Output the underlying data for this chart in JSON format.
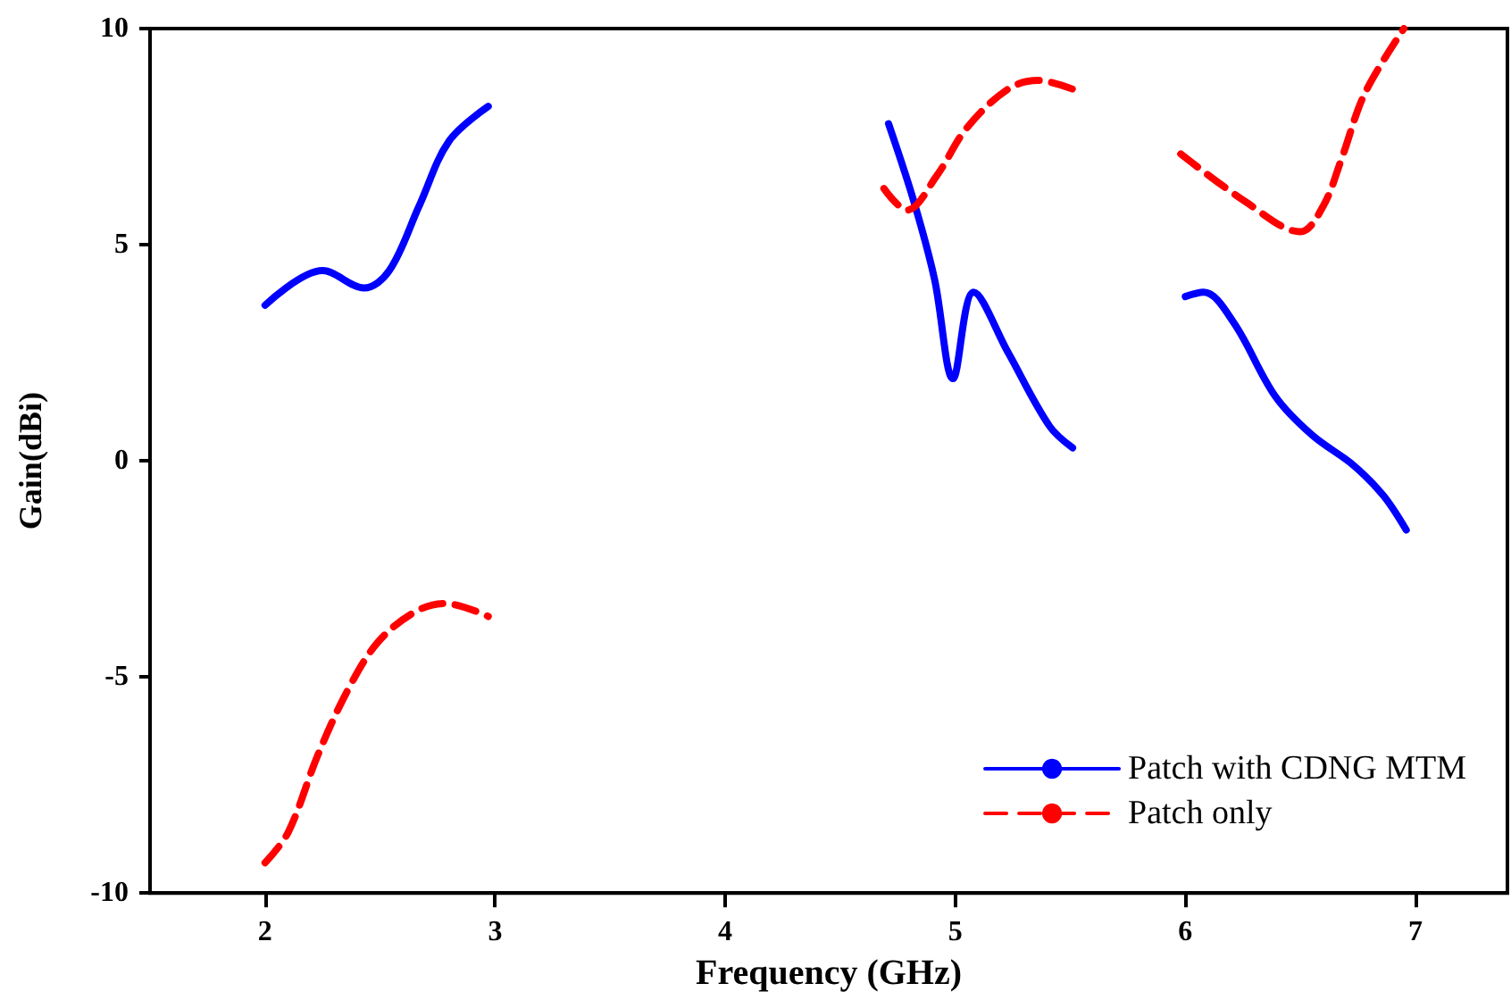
{
  "chart_data": {
    "type": "line",
    "xlabel": "Frequency (GHz)",
    "ylabel": "Gain(dBi)",
    "xlim": [
      1.5,
      7.4
    ],
    "xticks": [
      2,
      3,
      4,
      5,
      6,
      7
    ],
    "ylim": [
      -10,
      10
    ],
    "yticks": [
      -10,
      -5,
      0,
      5,
      10
    ],
    "grid": false,
    "legend": "bottom right",
    "marker": "none",
    "series": [
      {
        "name": "Patch with CDNG MTM",
        "color": "#0000ff",
        "line_style": "solid",
        "x": [
          2.0,
          2.25,
          2.43,
          2.54,
          2.67,
          2.8,
          2.97,
          null,
          4.71,
          4.82,
          4.91,
          4.99,
          5.08,
          5.23,
          5.41,
          5.51,
          null,
          6.0,
          6.08,
          6.21,
          6.39,
          6.55,
          6.73,
          6.86,
          6.96
        ],
        "values": [
          3.6,
          4.4,
          4.0,
          4.4,
          5.9,
          7.4,
          8.2,
          null,
          7.8,
          6.0,
          4.2,
          1.9,
          3.9,
          2.5,
          0.8,
          0.3,
          null,
          3.8,
          3.9,
          3.2,
          1.5,
          0.6,
          -0.1,
          -0.8,
          -1.6
        ]
      },
      {
        "name": "Patch only",
        "color": "#ff0000",
        "line_style": "dashed",
        "x": [
          2.0,
          2.1,
          2.23,
          2.36,
          2.49,
          2.65,
          2.78,
          2.97,
          null,
          4.69,
          4.79,
          4.92,
          5.05,
          5.23,
          5.36,
          5.51,
          null,
          5.98,
          6.26,
          6.5,
          6.6,
          6.68,
          6.78,
          6.95
        ],
        "values": [
          -9.3,
          -8.6,
          -6.8,
          -5.3,
          -4.2,
          -3.5,
          -3.3,
          -3.6,
          null,
          6.3,
          5.8,
          6.6,
          7.7,
          8.6,
          8.8,
          8.6,
          null,
          7.1,
          6.0,
          5.3,
          5.9,
          7.0,
          8.5,
          10.0
        ]
      }
    ]
  }
}
